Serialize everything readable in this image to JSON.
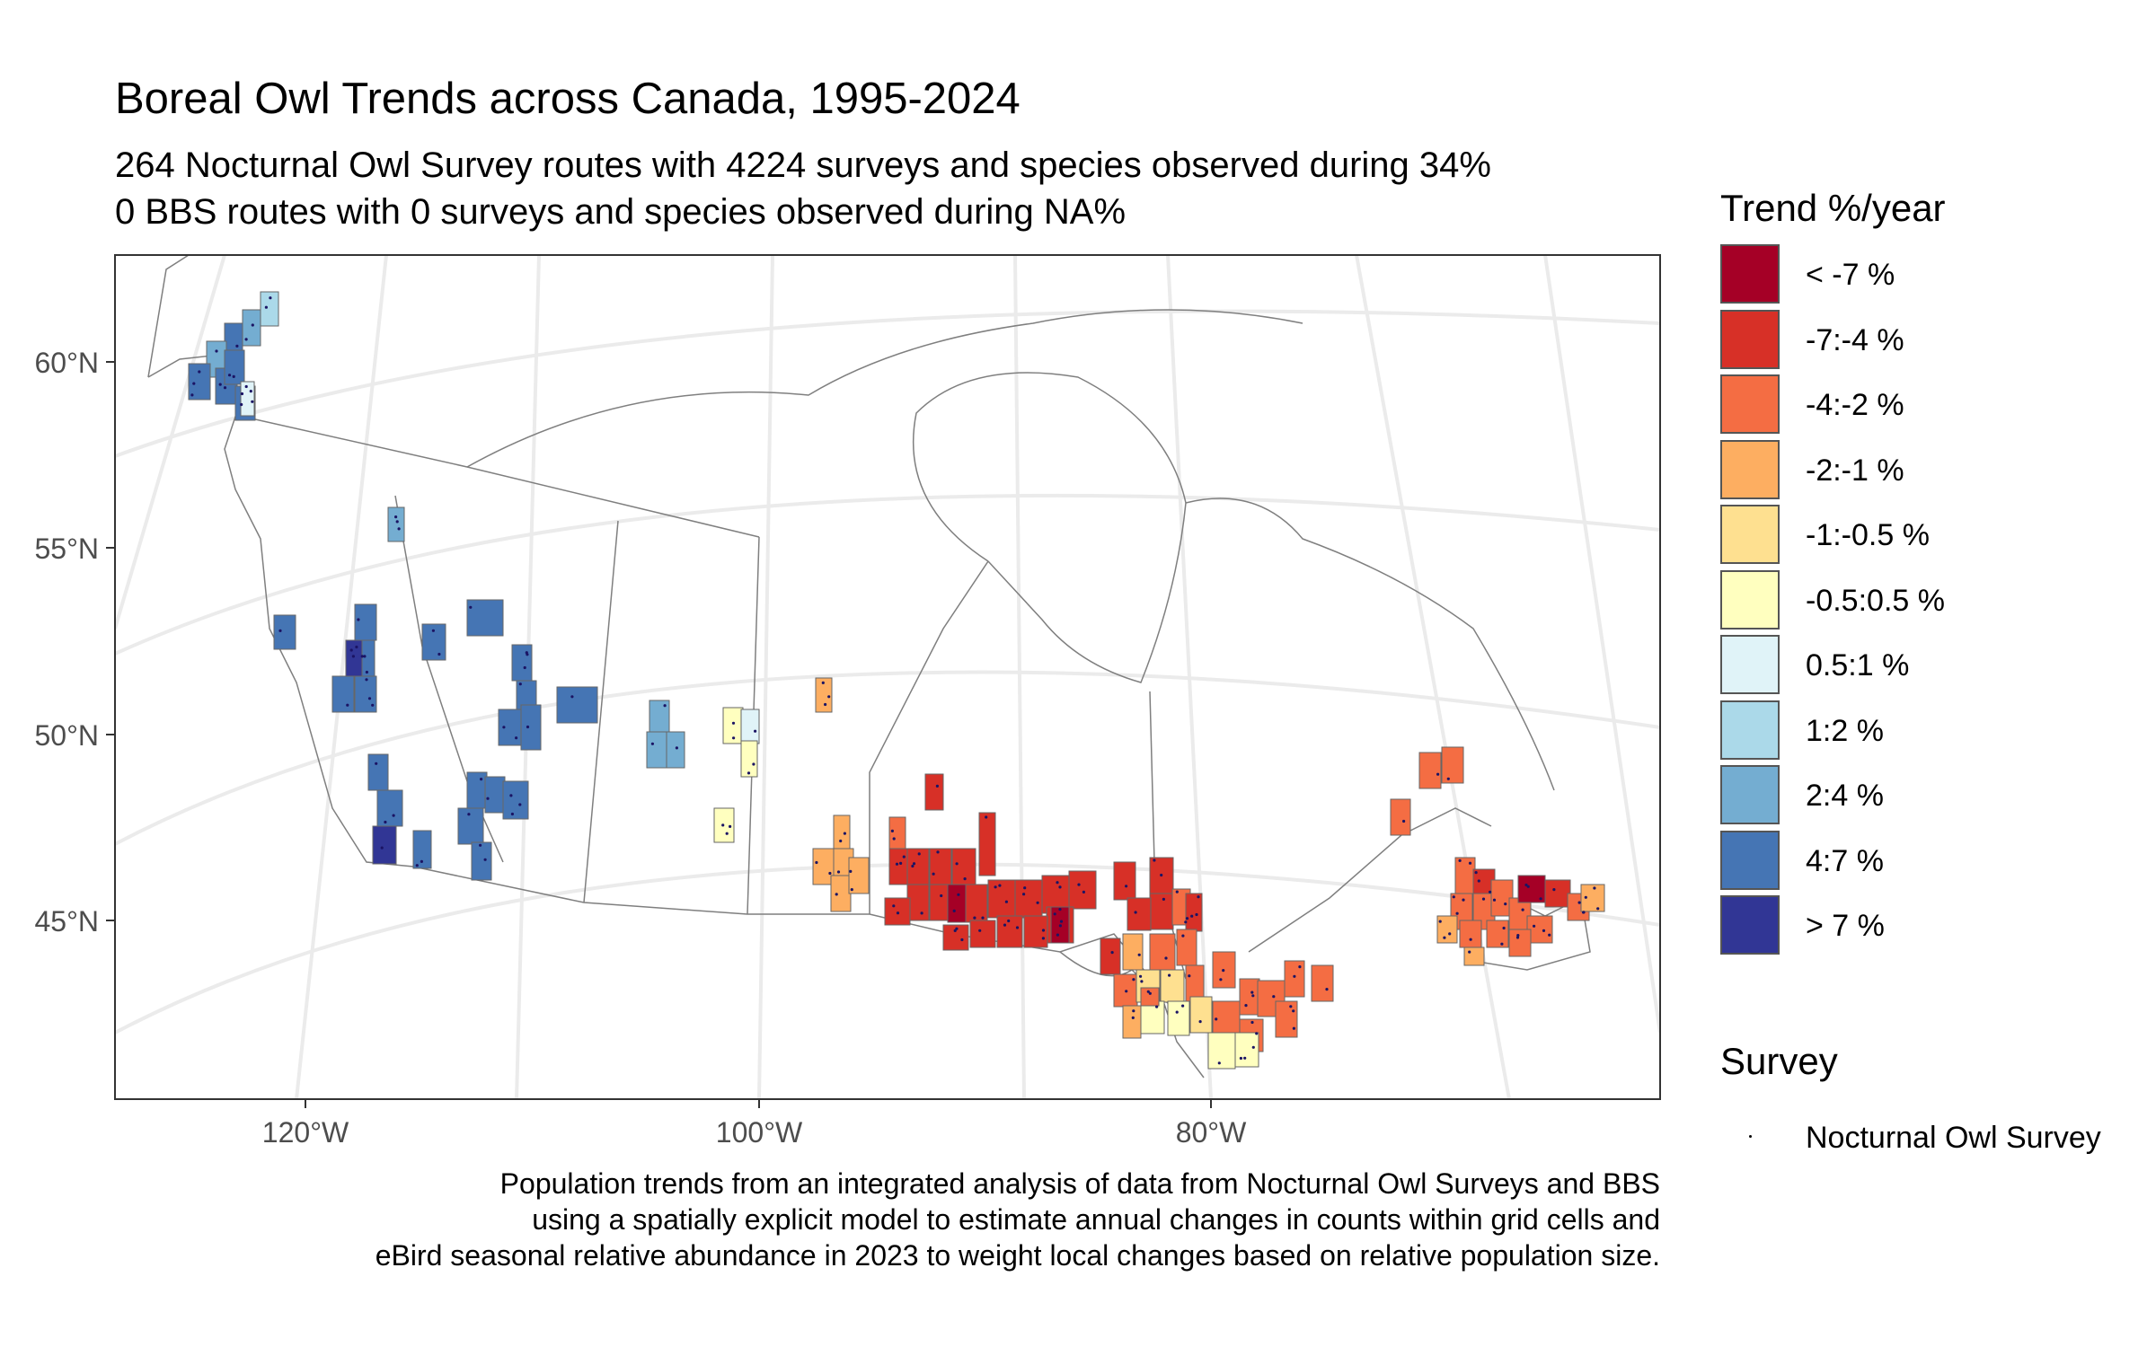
{
  "title": "Boreal Owl Trends across Canada, 1995-2024",
  "subtitle_line1": "264 Nocturnal Owl Survey routes with 4224 surveys and species observed during 34%",
  "subtitle_line2": "0 BBS routes with 0 surveys and species observed during NA%",
  "caption_line1": "Population trends from an integrated analysis of data from Nocturnal Owl Surveys and BBS",
  "caption_line2": "using a spatially explicit model to estimate annual changes in counts within grid cells and",
  "caption_line3": "eBird seasonal relative abundance in 2023 to weight local changes based on relative population size.",
  "axes": {
    "lat_labels": [
      "60°N",
      "55°N",
      "50°N",
      "45°N"
    ],
    "lon_labels": [
      "120°W",
      "100°W",
      "80°W"
    ]
  },
  "legend": {
    "title": "Trend %/year",
    "items": [
      {
        "label": "< -7 %",
        "color": "#a50026"
      },
      {
        "label": "-7:-4 %",
        "color": "#d73027"
      },
      {
        "label": "-4:-2 %",
        "color": "#f46d43"
      },
      {
        "label": "-2:-1 %",
        "color": "#fdae61"
      },
      {
        "label": "-1:-0.5 %",
        "color": "#fee090"
      },
      {
        "label": "-0.5:0.5 %",
        "color": "#ffffbf"
      },
      {
        "label": "0.5:1 %",
        "color": "#e0f3f8"
      },
      {
        "label": "1:2 %",
        "color": "#abd9e9"
      },
      {
        "label": "2:4 %",
        "color": "#74add1"
      },
      {
        "label": "4:7 %",
        "color": "#4575b4"
      },
      {
        "label": "> 7 %",
        "color": "#313695"
      }
    ]
  },
  "survey_legend": {
    "title": "Survey",
    "item": "Nocturnal Owl Survey"
  }
}
